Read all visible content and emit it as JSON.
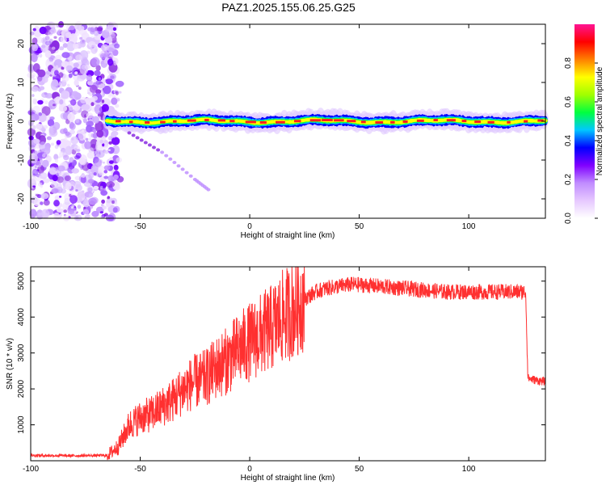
{
  "title": "PAZ1.2025.155.06.25.G25",
  "chart_data": [
    {
      "type": "heatmap",
      "xlabel": "Height of straight line (km)",
      "ylabel": "Frequency (Hz)",
      "xlim": [
        -100,
        135
      ],
      "ylim": [
        -25,
        25
      ],
      "xticks": [
        -100,
        -50,
        0,
        50,
        100
      ],
      "yticks": [
        -20,
        -10,
        0,
        10,
        20
      ],
      "colorbar": {
        "label": "Normalized spectral amplitude",
        "range": [
          0,
          1
        ],
        "ticks": [
          "0.0",
          "0.2",
          "0.4",
          "0.6",
          "0.8"
        ],
        "colors": [
          "#ffffff",
          "#e6c8ff",
          "#c08cff",
          "#8000ff",
          "#0000ff",
          "#00c8ff",
          "#00ff40",
          "#a0ff00",
          "#ffff00",
          "#ff8000",
          "#ff0000",
          "#ff1493"
        ]
      },
      "features": {
        "noise_region_x": [
          -100,
          -62
        ],
        "signal_ridge_freq_hz": 0,
        "signal_start_x": -65,
        "side_branch": {
          "x": [
            -55,
            -40,
            -25,
            -18
          ],
          "y": [
            -3,
            -8,
            -15,
            -18
          ]
        }
      }
    },
    {
      "type": "line",
      "xlabel": "Height of straight line (km)",
      "ylabel": "SNR (10 * v/v)",
      "xlim": [
        -100,
        135
      ],
      "ylim": [
        0,
        5400
      ],
      "xticks": [
        -100,
        -50,
        0,
        50,
        100
      ],
      "yticks": [
        1000,
        2000,
        3000,
        4000,
        5000
      ],
      "color": "#ff3030",
      "x": [
        -100,
        -80,
        -65,
        -60,
        -55,
        -50,
        -45,
        -40,
        -35,
        -30,
        -25,
        -20,
        -15,
        -10,
        -5,
        0,
        5,
        10,
        15,
        20,
        25,
        30,
        35,
        40,
        45,
        50,
        60,
        70,
        80,
        90,
        100,
        110,
        120,
        126,
        127,
        130,
        135
      ],
      "values": [
        150,
        140,
        150,
        400,
        1000,
        1200,
        1300,
        1500,
        1700,
        2000,
        2200,
        2300,
        2600,
        2800,
        3100,
        3300,
        3500,
        3700,
        4000,
        4200,
        4500,
        4700,
        4800,
        4850,
        4900,
        4900,
        4850,
        4800,
        4750,
        4700,
        4700,
        4700,
        4700,
        4700,
        2300,
        2250,
        2200
      ]
    }
  ]
}
